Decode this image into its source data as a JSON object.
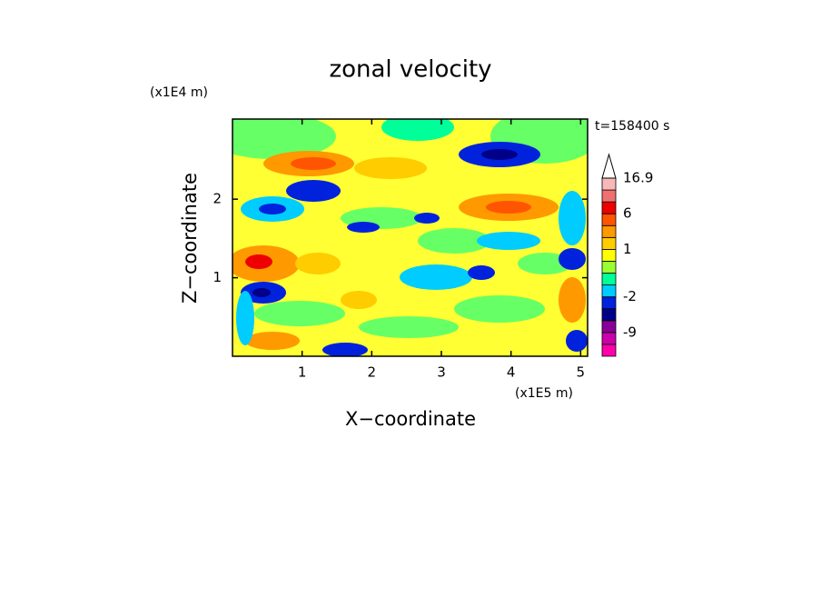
{
  "chart_data": {
    "type": "contour",
    "title": "zonal velocity",
    "x_label": "X−coordinate",
    "y_label": "Z−coordinate",
    "x_unit": "(x1E5 m)",
    "y_unit": "(x1E4 m)",
    "annotation": "t=158400 s",
    "xlim": [
      0,
      5.1
    ],
    "ylim": [
      0,
      3.02
    ],
    "xticks": [
      1,
      2,
      3,
      4,
      5
    ],
    "yticks": [
      1,
      2
    ],
    "colorbar": {
      "levels": [
        -15,
        -12,
        -9,
        -6,
        -4,
        -2,
        -1,
        0,
        0.5,
        1,
        2,
        4,
        6,
        9,
        12,
        16.9
      ],
      "colors": [
        "#ff00aa",
        "#cc00aa",
        "#880099",
        "#000088",
        "#0022dd",
        "#00ccff",
        "#00ff99",
        "#99ff33",
        "#ffff00",
        "#ffcc00",
        "#ff9900",
        "#ff5500",
        "#ee0000",
        "#f07070",
        "#f8b8b8"
      ],
      "ticks": [
        16.9,
        6,
        1,
        -2,
        -9
      ]
    }
  }
}
